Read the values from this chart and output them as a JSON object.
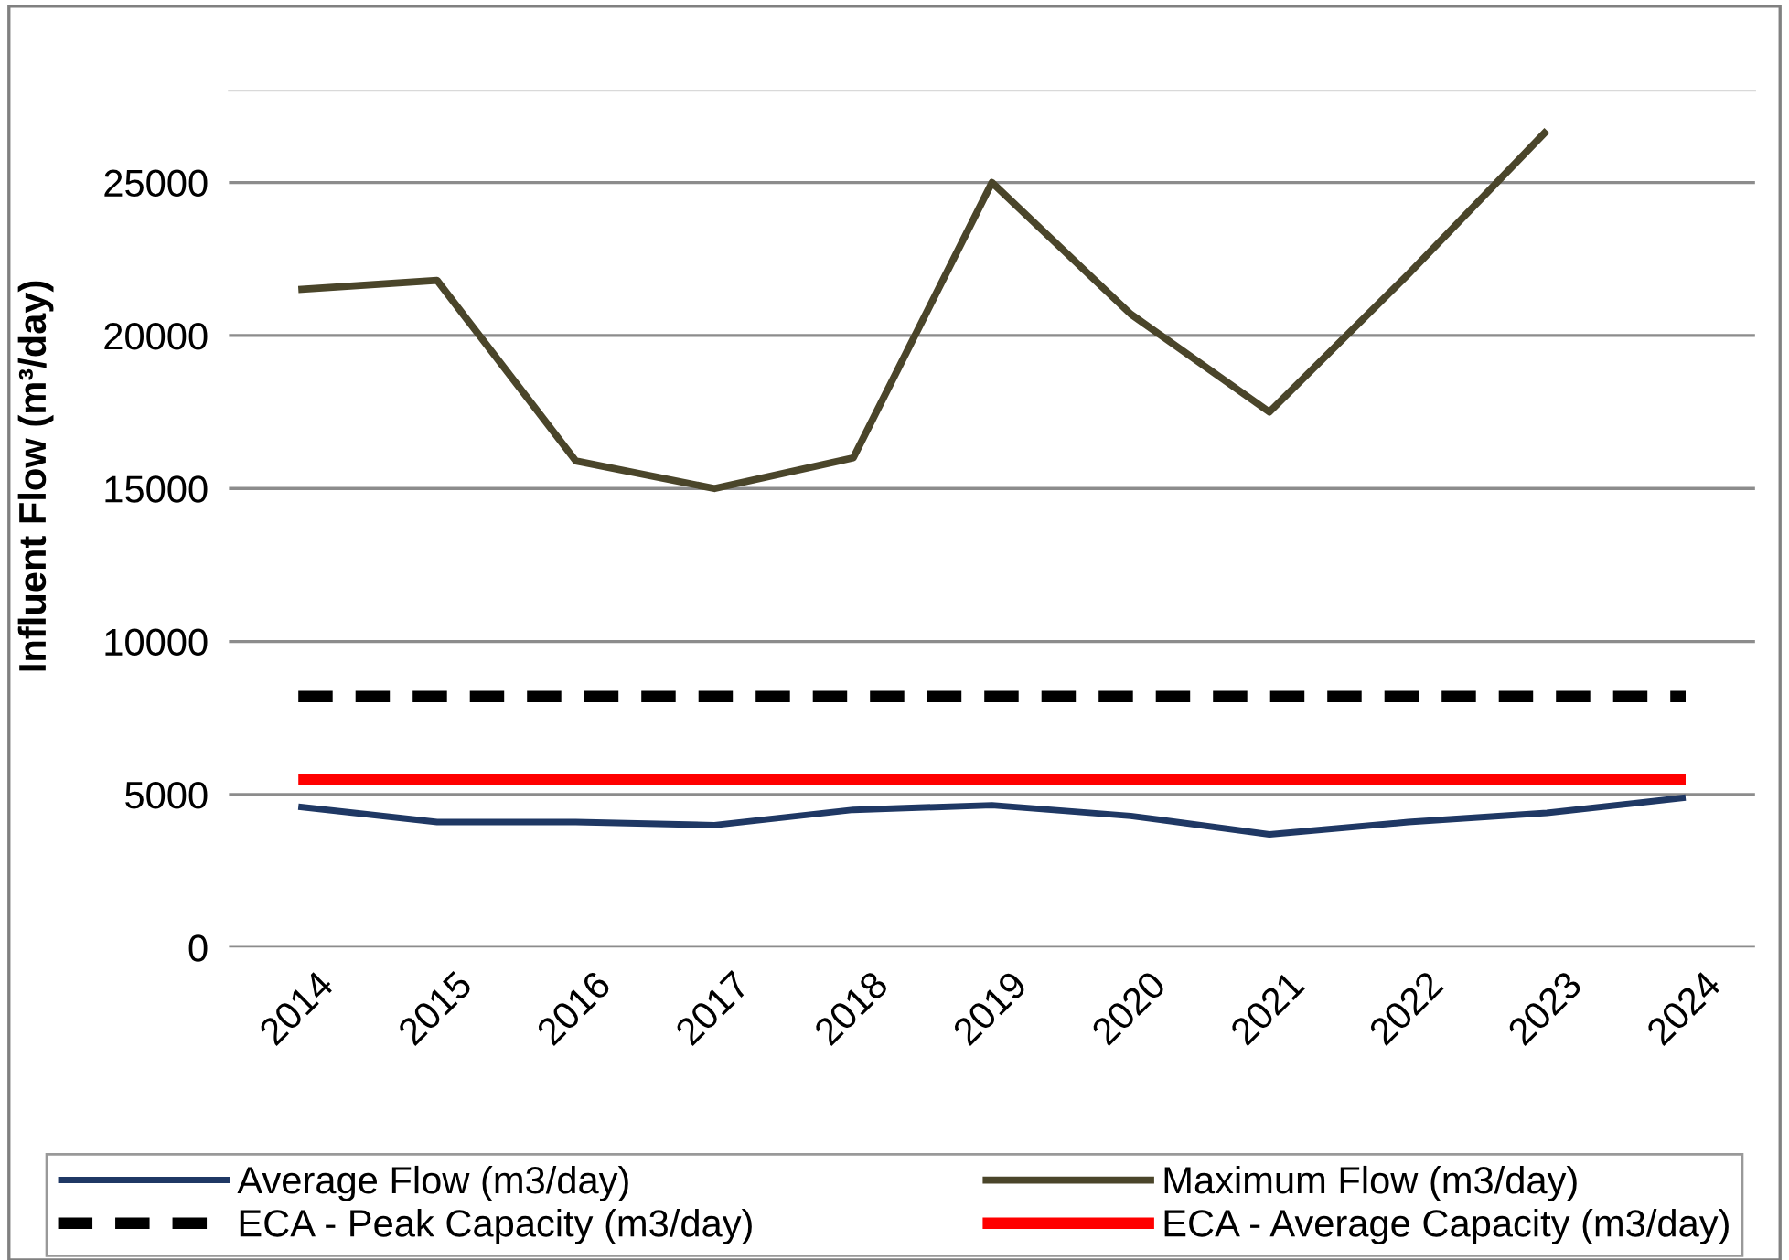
{
  "chart_data": {
    "type": "line",
    "ylabel": "Influent Flow (m³/day)",
    "categories": [
      "2014",
      "2015",
      "2016",
      "2017",
      "2018",
      "2019",
      "2020",
      "2021",
      "2022",
      "2023",
      "2024"
    ],
    "series": [
      {
        "name": "Average Flow (m3/day)",
        "color": "#1f3864",
        "values": [
          4600,
          4100,
          4100,
          4000,
          4500,
          4650,
          4300,
          3700,
          4100,
          4400,
          4900
        ]
      },
      {
        "name": "Maximum Flow (m3/day)",
        "color": "#4a452a",
        "values": [
          21500,
          21800,
          15900,
          15000,
          16000,
          25000,
          20700,
          17500,
          22000,
          26700,
          null
        ]
      },
      {
        "name": "ECA - Peak Capacity (m3/day)",
        "color": "#000000",
        "line_style": "dashed",
        "values": [
          8200,
          8200,
          8200,
          8200,
          8200,
          8200,
          8200,
          8200,
          8200,
          8200,
          8200
        ]
      },
      {
        "name": "ECA - Average Capacity (m3/day)",
        "color": "#ff0000",
        "values": [
          5500,
          5500,
          5500,
          5500,
          5500,
          5500,
          5500,
          5500,
          5500,
          5500,
          5500
        ]
      }
    ],
    "ylim": [
      0,
      28000
    ],
    "yticks": [
      0,
      5000,
      10000,
      15000,
      20000,
      25000
    ],
    "grid": "y",
    "legend": "bottom",
    "marker": "none",
    "line_style": "solid"
  }
}
